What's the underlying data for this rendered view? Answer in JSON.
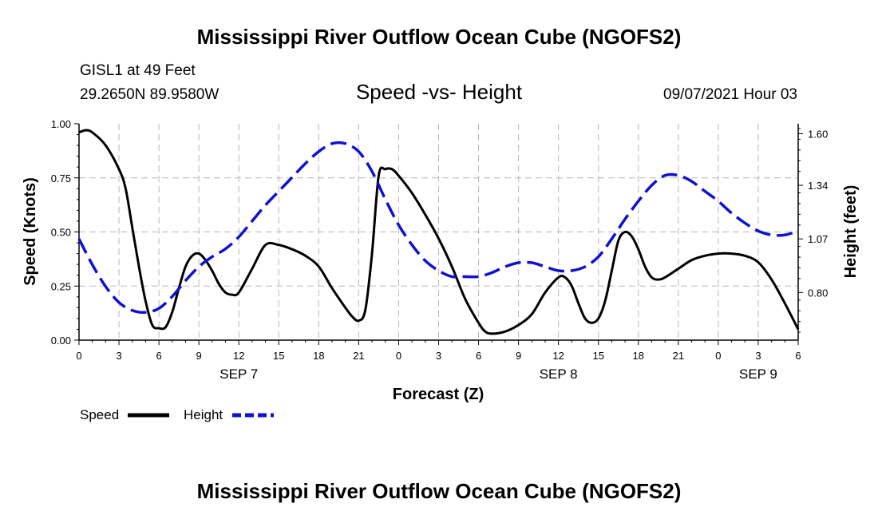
{
  "header": {
    "title": "Mississippi River Outflow Ocean Cube (NGOFS2)",
    "station": "GISL1 at 49 Feet",
    "coordinates": "29.2650N  89.9580W",
    "subtitle": "Speed -vs- Height",
    "datetime": "09/07/2021 Hour 03",
    "footer_title": "Mississippi River Outflow Ocean Cube (NGOFS2)"
  },
  "legend": {
    "speed_label": "Speed",
    "height_label": "Height"
  },
  "chart_data": {
    "type": "line",
    "xlabel": "Forecast (Z)",
    "ylabel": "Speed (Knots)",
    "y2label": "Height (feet)",
    "xlim": [
      0,
      54
    ],
    "ylim": [
      0,
      1.0
    ],
    "y2lim": [
      0.56,
      1.65
    ],
    "x_ticks": [
      0,
      3,
      6,
      9,
      12,
      15,
      18,
      21,
      24,
      27,
      30,
      33,
      36,
      39,
      42,
      45,
      48,
      51,
      54
    ],
    "x_tick_labels": [
      "0",
      "3",
      "6",
      "9",
      "12",
      "15",
      "18",
      "21",
      "0",
      "3",
      "6",
      "9",
      "12",
      "15",
      "18",
      "21",
      "0",
      "3",
      "6"
    ],
    "y_ticks": [
      0.0,
      0.25,
      0.5,
      0.75,
      1.0
    ],
    "y_tick_labels": [
      "0.00",
      "0.25",
      "0.50",
      "0.75",
      "1.00"
    ],
    "y2_ticks": [
      0.8,
      1.07,
      1.34,
      1.6
    ],
    "y2_tick_labels": [
      "0.80",
      "1.07",
      "1.34",
      "1.60"
    ],
    "date_labels": [
      {
        "label": "SEP 7",
        "x": 12
      },
      {
        "label": "SEP 8",
        "x": 36
      },
      {
        "label": "SEP 9",
        "x": 51
      }
    ],
    "grid": true,
    "series": [
      {
        "name": "Speed",
        "axis": "left",
        "color": "#000000",
        "style": "solid",
        "x": [
          0,
          0.5,
          1,
          2,
          3,
          3.5,
          4,
          4.5,
          5,
          5.5,
          6,
          6.5,
          7,
          7.5,
          8,
          8.5,
          9,
          9.5,
          10,
          10.5,
          11,
          11.5,
          12,
          13,
          14,
          15,
          16,
          17,
          18,
          19,
          20,
          20.5,
          21,
          21.5,
          22,
          22.5,
          23,
          23.5,
          24,
          25,
          26,
          27,
          28,
          29,
          30,
          30.5,
          31,
          32,
          33,
          34,
          35,
          36,
          36.5,
          37,
          37.5,
          38,
          38.5,
          39,
          39.5,
          40,
          40.5,
          41,
          41.5,
          42,
          42.5,
          43,
          43.5,
          44,
          45,
          46,
          47,
          48,
          49,
          50,
          51,
          52,
          53,
          54
        ],
        "values": [
          0.96,
          0.97,
          0.96,
          0.9,
          0.79,
          0.7,
          0.52,
          0.34,
          0.18,
          0.07,
          0.055,
          0.06,
          0.13,
          0.24,
          0.34,
          0.39,
          0.4,
          0.37,
          0.32,
          0.26,
          0.22,
          0.21,
          0.22,
          0.33,
          0.44,
          0.44,
          0.42,
          0.39,
          0.34,
          0.24,
          0.15,
          0.11,
          0.09,
          0.14,
          0.4,
          0.76,
          0.79,
          0.79,
          0.76,
          0.68,
          0.58,
          0.47,
          0.34,
          0.19,
          0.08,
          0.04,
          0.03,
          0.04,
          0.07,
          0.12,
          0.22,
          0.29,
          0.29,
          0.25,
          0.17,
          0.1,
          0.08,
          0.1,
          0.18,
          0.32,
          0.46,
          0.5,
          0.48,
          0.42,
          0.34,
          0.29,
          0.28,
          0.29,
          0.33,
          0.37,
          0.39,
          0.4,
          0.4,
          0.39,
          0.36,
          0.28,
          0.17,
          0.05
        ]
      },
      {
        "name": "Height",
        "axis": "right",
        "color": "#1010d0",
        "style": "dashed",
        "x": [
          0,
          1,
          2,
          3,
          4,
          5,
          6,
          7,
          8,
          9,
          10,
          11,
          12,
          13,
          14,
          15,
          16,
          17,
          18,
          19,
          20,
          21,
          22,
          23,
          24,
          25,
          26,
          27,
          28,
          29,
          30,
          31,
          32,
          33,
          34,
          35,
          36,
          37,
          38,
          39,
          40,
          41,
          42,
          43,
          44,
          45,
          46,
          47,
          48,
          49,
          50,
          51,
          52,
          53,
          54
        ],
        "values": [
          1.07,
          0.94,
          0.83,
          0.75,
          0.71,
          0.7,
          0.72,
          0.78,
          0.86,
          0.93,
          0.98,
          1.02,
          1.08,
          1.16,
          1.24,
          1.31,
          1.38,
          1.45,
          1.51,
          1.55,
          1.55,
          1.51,
          1.41,
          1.27,
          1.14,
          1.04,
          0.96,
          0.91,
          0.88,
          0.88,
          0.88,
          0.9,
          0.93,
          0.95,
          0.95,
          0.93,
          0.91,
          0.91,
          0.93,
          0.98,
          1.07,
          1.17,
          1.26,
          1.34,
          1.39,
          1.39,
          1.36,
          1.31,
          1.26,
          1.2,
          1.15,
          1.11,
          1.09,
          1.09,
          1.11
        ]
      }
    ]
  }
}
